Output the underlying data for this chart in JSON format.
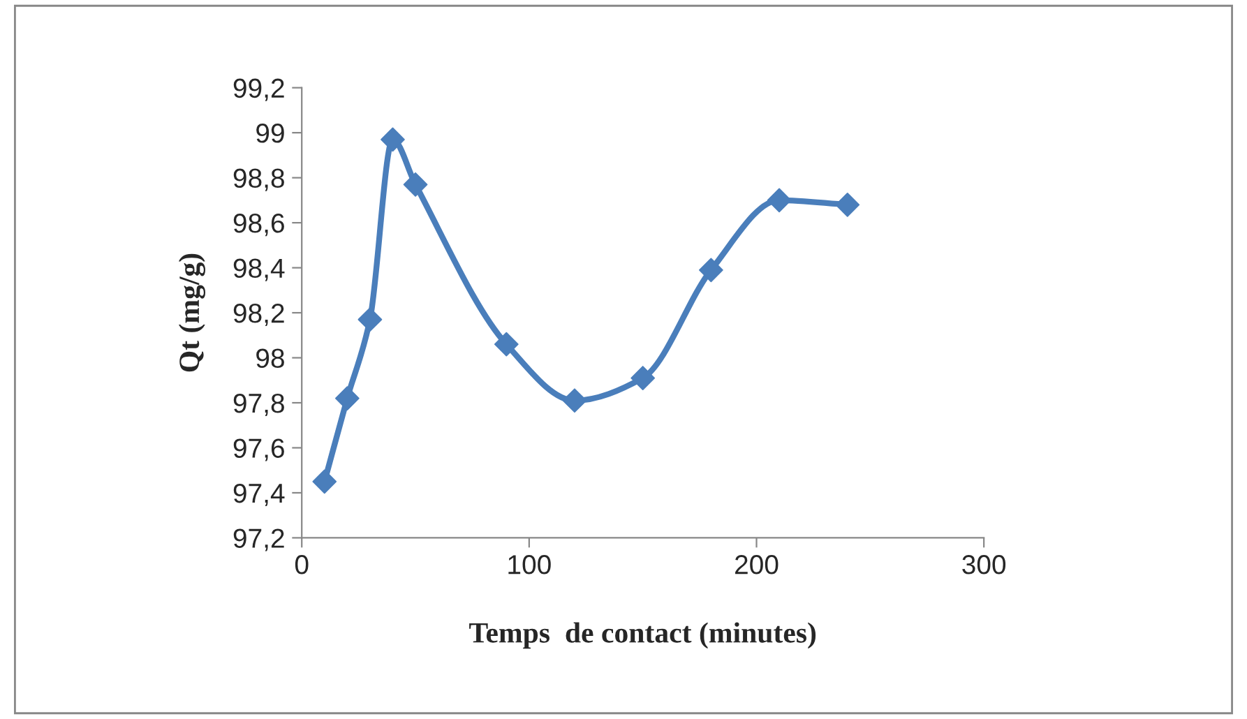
{
  "chart_data": {
    "type": "line",
    "xlabel": "Temps  de contact (minutes)",
    "ylabel": "Qt (mg/g)",
    "x": [
      10,
      20,
      30,
      40,
      50,
      90,
      120,
      150,
      180,
      210,
      240
    ],
    "series": [
      {
        "color": "#4a7ebb",
        "values": [
          97.45,
          97.82,
          98.17,
          98.97,
          98.77,
          98.06,
          97.81,
          97.91,
          98.39,
          98.7,
          98.68
        ]
      }
    ],
    "xlim": [
      0,
      300
    ],
    "xticks": [
      0,
      100,
      200,
      300
    ],
    "ylim": [
      97.2,
      99.2
    ],
    "yticks": [
      {
        "value": 97.2,
        "label": "97,2"
      },
      {
        "value": 97.4,
        "label": "97,4"
      },
      {
        "value": 97.6,
        "label": "97,6"
      },
      {
        "value": 97.8,
        "label": "97,8"
      },
      {
        "value": 98,
        "label": "98"
      },
      {
        "value": 98.2,
        "label": "98,2"
      },
      {
        "value": 98.4,
        "label": "98,4"
      },
      {
        "value": 98.6,
        "label": "98,6"
      },
      {
        "value": 98.8,
        "label": "98,8"
      },
      {
        "value": 99,
        "label": "99"
      },
      {
        "value": 99.2,
        "label": "99,2"
      }
    ],
    "marker": "diamond",
    "line_style": "solid",
    "grid": false,
    "legend": false
  }
}
